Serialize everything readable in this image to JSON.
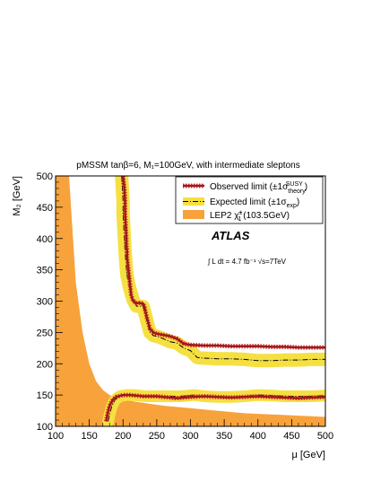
{
  "chart_data": {
    "type": "line",
    "title": "pMSSM tanβ=6, M₁=100GeV, with intermediate sleptons",
    "xlabel": "μ [GeV]",
    "ylabel": "M₂ [GeV]",
    "xlim": [
      100,
      500
    ],
    "ylim": [
      100,
      500
    ],
    "x_ticks": [
      100,
      150,
      200,
      250,
      300,
      350,
      400,
      450,
      500
    ],
    "y_ticks": [
      100,
      150,
      200,
      250,
      300,
      350,
      400,
      450,
      500
    ],
    "grid": false,
    "legend_position": "top-right",
    "legend": [
      {
        "name": "Observed limit (±1σ theory SUSY)",
        "color": "#9b1b1b"
      },
      {
        "name": "Expected limit (±1σ exp)",
        "color": "#f5e042"
      },
      {
        "name": "LEP2 χ̃±₁ (103.5GeV)",
        "color": "#f7a23b"
      }
    ],
    "annotations": [
      "ATLAS",
      "∫ L dt = 4.7 fb⁻¹ √s=7TeV"
    ],
    "colors": {
      "observed": "#9b1b1b",
      "expected_band": "#f5e042",
      "lep": "#f7a23b",
      "observed_band": "#e03030"
    },
    "series": [
      {
        "key": "lep2",
        "x": [
          100,
          110,
          120,
          130,
          140,
          150,
          160,
          170,
          180,
          190,
          200,
          220,
          240,
          260,
          280,
          300,
          320,
          340,
          360,
          380,
          400,
          420,
          440,
          460,
          480,
          500
        ],
        "y_upper": [
          500,
          500,
          500,
          330,
          250,
          200,
          172,
          158,
          150,
          146,
          143,
          139,
          136,
          133,
          131,
          129,
          127,
          125,
          123,
          121,
          120,
          119,
          118,
          117,
          116,
          115
        ]
      },
      {
        "key": "observed_upper",
        "x": [
          200,
          202,
          203,
          203,
          204,
          205,
          205,
          206,
          206,
          207,
          208,
          210,
          212,
          215,
          220,
          225,
          230,
          232,
          235,
          240,
          245,
          250,
          260,
          270,
          280,
          290,
          300,
          320,
          340,
          360,
          380,
          400,
          420,
          440,
          460,
          480,
          500
        ],
        "y": [
          500,
          480,
          460,
          440,
          420,
          400,
          390,
          380,
          370,
          360,
          350,
          330,
          310,
          300,
          297,
          297,
          296,
          290,
          275,
          256,
          250,
          248,
          246,
          244,
          240,
          232,
          230,
          229,
          229,
          228,
          228,
          228,
          227,
          227,
          226,
          226,
          226
        ]
      },
      {
        "key": "expected_upper",
        "x": [
          198,
          199,
          200,
          200,
          201,
          202,
          203,
          204,
          205,
          206,
          208,
          210,
          215,
          220,
          225,
          230,
          235,
          240,
          245,
          250,
          260,
          270,
          280,
          290,
          300,
          310,
          320,
          340,
          360,
          380,
          400,
          420,
          440,
          460,
          480,
          500
        ],
        "y": [
          500,
          480,
          460,
          440,
          420,
          400,
          380,
          365,
          350,
          340,
          330,
          320,
          302,
          292,
          292,
          291,
          270,
          250,
          245,
          244,
          240,
          235,
          233,
          225,
          221,
          210,
          209,
          208,
          208,
          207,
          205,
          205,
          206,
          206,
          207,
          207
        ]
      },
      {
        "key": "observed_lower",
        "x": [
          175,
          177,
          180,
          185,
          190,
          200,
          210,
          220,
          230,
          240,
          250,
          260,
          270,
          280,
          290,
          300,
          320,
          340,
          360,
          380,
          400,
          420,
          440,
          460,
          480,
          500
        ],
        "y": [
          108,
          120,
          133,
          143,
          147,
          150,
          150,
          149,
          148,
          148,
          148,
          147,
          146,
          145,
          146,
          147,
          148,
          147,
          146,
          147,
          148,
          147,
          146,
          145,
          146,
          147
        ]
      },
      {
        "key": "expected_lower",
        "x": [
          178,
          180,
          183,
          188,
          195,
          205,
          215,
          225,
          235,
          245,
          255,
          265,
          275,
          285,
          295,
          305,
          320,
          340,
          360,
          380,
          400,
          420,
          440,
          460,
          480,
          500
        ],
        "y": [
          108,
          118,
          131,
          142,
          148,
          150,
          150,
          149,
          148,
          148,
          148,
          148,
          148,
          148,
          149,
          150,
          148,
          147,
          147,
          148,
          150,
          149,
          148,
          148,
          148,
          149
        ]
      }
    ]
  }
}
